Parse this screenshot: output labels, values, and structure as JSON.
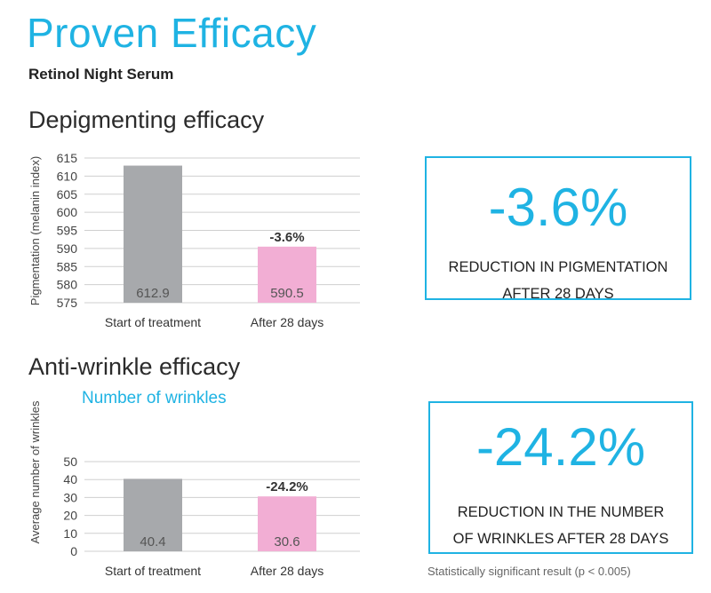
{
  "header": {
    "title": "Proven Efficacy",
    "subtitle": "Retinol Night Serum"
  },
  "sections": {
    "depigmenting_title": "Depigmenting efficacy",
    "antiwrinkle_title": "Anti-wrinkle efficacy",
    "antiwrinkle_chart_heading": "Number of wrinkles"
  },
  "kpis": [
    {
      "value": "-3.6%",
      "label_line1": "REDUCTION IN PIGMENTATION",
      "label_line2": "AFTER 28 DAYS"
    },
    {
      "value": "-24.2%",
      "label_line1": "REDUCTION IN THE NUMBER",
      "label_line2": "OF WRINKLES AFTER 28 DAYS"
    }
  ],
  "footnote": "Statistically significant result (p < 0.005)",
  "colors": {
    "accent": "#1fb3e3",
    "bar_start": "#a7a9ac",
    "bar_after": "#f2aed4",
    "grid": "#cfcfcf"
  },
  "chart_data": [
    {
      "type": "bar",
      "categories": [
        "Start of treatment",
        "After 28 days"
      ],
      "values": [
        612.9,
        590.5
      ],
      "value_labels": [
        "612.9",
        "590.5"
      ],
      "annotations": [
        null,
        "-3.6%"
      ],
      "xlabel": "",
      "ylabel": "Pigmentation (melanin index)",
      "ylim": [
        575,
        615
      ],
      "yticks": [
        575,
        580,
        585,
        590,
        595,
        600,
        605,
        610,
        615
      ],
      "grid": true
    },
    {
      "type": "bar",
      "categories": [
        "Start of treatment",
        "After 28 days"
      ],
      "values": [
        40.4,
        30.6
      ],
      "value_labels": [
        "40.4",
        "30.6"
      ],
      "annotations": [
        null,
        "-24.2%"
      ],
      "xlabel": "",
      "ylabel": "Average number of wrinkles",
      "ylim": [
        0,
        50
      ],
      "yticks": [
        0,
        10,
        20,
        30,
        40,
        50
      ],
      "grid": true
    }
  ]
}
